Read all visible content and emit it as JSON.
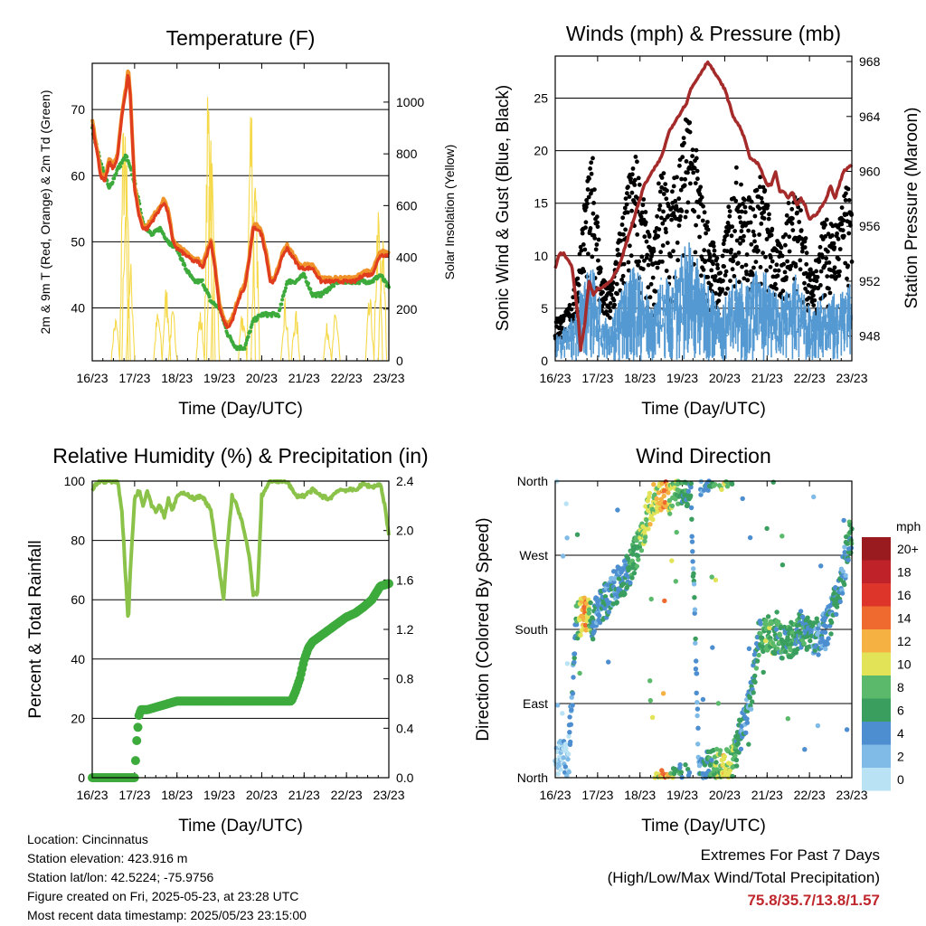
{
  "chart_data": [
    {
      "type": "line",
      "title": "Temperature (F)",
      "xlabel": "Time (Day/UTC)",
      "ylabel_left": "2m & 9m T (Red, Orange) & 2m Td (Green)",
      "ylabel_right": "Solar Insolation (Yellow)",
      "x_ticks": [
        "16/23",
        "17/23",
        "18/23",
        "19/23",
        "20/23",
        "21/23",
        "22/23",
        "23/23"
      ],
      "ylim_left": [
        32,
        77
      ],
      "yticks_left": [
        40,
        50,
        60,
        70
      ],
      "ylim_right": [
        0,
        1150
      ],
      "yticks_right": [
        0,
        200,
        400,
        600,
        800,
        1000
      ],
      "grid": "horizontal",
      "colors": {
        "t2m": "#e03c1e",
        "t9m": "#f0922a",
        "td2m": "#3daa3c",
        "solar": "#f5d94a"
      },
      "series": [
        {
          "name": "2m T",
          "axis": "left",
          "x": [
            0,
            0.1,
            0.2,
            0.3,
            0.4,
            0.5,
            0.6,
            0.7,
            0.8,
            0.85,
            0.9,
            1.0,
            1.1,
            1.2,
            1.3,
            1.4,
            1.5,
            1.6,
            1.7,
            1.8,
            1.9,
            2.0,
            2.2,
            2.4,
            2.5,
            2.6,
            2.7,
            2.8,
            2.9,
            3.0,
            3.1,
            3.2,
            3.3,
            3.4,
            3.5,
            3.6,
            3.7,
            3.8,
            3.9,
            4.0,
            4.1,
            4.2,
            4.3,
            4.4,
            4.5,
            4.6,
            4.7,
            4.8,
            4.9,
            5.0,
            5.2,
            5.4,
            5.6,
            5.8,
            6.0,
            6.2,
            6.4,
            6.6,
            6.8,
            7.0
          ],
          "y": [
            68,
            64,
            60,
            59,
            62,
            61,
            63,
            69,
            73,
            75.8,
            72,
            58,
            54,
            52,
            52,
            53,
            54,
            55,
            56,
            54,
            50,
            49,
            48,
            47,
            47,
            46,
            48,
            50,
            46,
            40,
            38,
            37,
            38,
            40,
            42,
            43,
            47,
            52,
            52,
            51,
            48,
            44,
            44,
            46,
            48,
            49,
            48,
            47,
            46,
            46,
            46,
            44,
            44,
            44,
            44,
            44,
            45,
            45,
            48,
            48
          ]
        },
        {
          "name": "2m Td",
          "axis": "left",
          "x": [
            0,
            0.2,
            0.4,
            0.6,
            0.8,
            1.0,
            1.2,
            1.4,
            1.6,
            1.8,
            2.0,
            2.2,
            2.4,
            2.6,
            2.8,
            3.0,
            3.2,
            3.4,
            3.6,
            3.8,
            4.0,
            4.2,
            4.4,
            4.6,
            4.8,
            5.0,
            5.2,
            5.4,
            5.6,
            5.8,
            6.0,
            6.2,
            6.4,
            6.6,
            6.8,
            7.0
          ],
          "y": [
            67,
            62,
            58,
            61,
            63,
            59,
            53,
            51,
            52,
            50,
            49,
            46,
            44,
            44,
            41,
            40,
            36,
            34,
            34,
            38,
            39,
            39,
            39,
            44,
            44,
            45,
            42,
            42,
            43,
            44,
            44,
            44,
            44,
            44,
            45,
            43
          ]
        },
        {
          "name": "Solar Insolation",
          "axis": "right",
          "peaks": [
            {
              "x": 0.55,
              "y": 180
            },
            {
              "x": 0.75,
              "y": 1000
            },
            {
              "x": 0.8,
              "y": 800
            },
            {
              "x": 0.9,
              "y": 400
            },
            {
              "x": 1.55,
              "y": 200
            },
            {
              "x": 1.75,
              "y": 300
            },
            {
              "x": 1.9,
              "y": 200
            },
            {
              "x": 2.55,
              "y": 200
            },
            {
              "x": 2.75,
              "y": 1150
            },
            {
              "x": 2.8,
              "y": 900
            },
            {
              "x": 2.9,
              "y": 500
            },
            {
              "x": 3.55,
              "y": 200
            },
            {
              "x": 3.75,
              "y": 1100
            },
            {
              "x": 3.85,
              "y": 700
            },
            {
              "x": 4.55,
              "y": 250
            },
            {
              "x": 4.8,
              "y": 200
            },
            {
              "x": 5.55,
              "y": 150
            },
            {
              "x": 5.75,
              "y": 200
            },
            {
              "x": 6.55,
              "y": 250
            },
            {
              "x": 6.75,
              "y": 600
            },
            {
              "x": 6.85,
              "y": 500
            }
          ]
        }
      ]
    },
    {
      "type": "scatter",
      "title": "Winds (mph) & Pressure (mb)",
      "xlabel": "Time (Day/UTC)",
      "ylabel_left": "Sonic Wind & Gust (Blue, Black)",
      "ylabel_right": "Station Pressure (Maroon)",
      "x_ticks": [
        "16/23",
        "17/23",
        "18/23",
        "19/23",
        "20/23",
        "21/23",
        "22/23",
        "23/23"
      ],
      "ylim_left": [
        0,
        29
      ],
      "yticks_left": [
        0,
        5,
        10,
        15,
        20,
        25
      ],
      "ylim_right": [
        946.2,
        968.4
      ],
      "yticks_right": [
        948,
        952,
        956,
        960,
        964,
        968
      ],
      "grid": "horizontal",
      "colors": {
        "wind": "#5499d1",
        "gust": "#000000",
        "pressure": "#a52a2a"
      },
      "series": [
        {
          "name": "Station Pressure",
          "axis": "right",
          "type": "line",
          "x": [
            0,
            0.1,
            0.2,
            0.4,
            0.55,
            0.6,
            0.7,
            0.8,
            0.9,
            1.0,
            1.1,
            1.3,
            1.5,
            1.7,
            1.9,
            2.1,
            2.3,
            2.5,
            2.6,
            2.7,
            2.8,
            2.9,
            3.0,
            3.1,
            3.2,
            3.3,
            3.4,
            3.5,
            3.6,
            3.7,
            3.8,
            3.9,
            4.0,
            4.1,
            4.2,
            4.3,
            4.4,
            4.5,
            4.6,
            4.8,
            5.0,
            5.1,
            5.2,
            5.3,
            5.4,
            5.5,
            5.6,
            5.7,
            5.8,
            5.9,
            6.0,
            6.2,
            6.4,
            6.5,
            6.6,
            6.8,
            7.0
          ],
          "y": [
            953,
            954,
            954,
            953,
            949,
            947,
            949,
            952,
            951,
            951.5,
            951.5,
            952,
            953,
            955,
            957,
            959,
            960,
            961,
            962,
            963,
            963.5,
            964,
            964.5,
            965,
            966,
            966.5,
            967,
            967.5,
            968,
            967.5,
            967,
            966.5,
            966,
            965,
            964,
            963.5,
            963,
            962,
            961,
            960.5,
            959,
            959,
            960,
            958.5,
            958.5,
            958,
            958.5,
            957.5,
            958,
            957.5,
            956.5,
            957,
            958,
            959,
            958,
            960,
            960.5
          ]
        },
        {
          "name": "Sonic Wind",
          "axis": "left",
          "type": "band",
          "x": [
            0,
            0.3,
            0.5,
            0.7,
            0.9,
            1.1,
            1.3,
            1.5,
            1.7,
            1.9,
            2.1,
            2.3,
            2.5,
            2.7,
            2.9,
            3.1,
            3.3,
            3.5,
            3.7,
            3.9,
            4.1,
            4.3,
            4.5,
            4.7,
            4.9,
            5.1,
            5.3,
            5.5,
            5.7,
            5.9,
            6.1,
            6.3,
            6.5,
            6.7,
            6.9,
            7.0
          ],
          "y": [
            2,
            3,
            4,
            8,
            9,
            4,
            3,
            5,
            7,
            8,
            6,
            4,
            8,
            6,
            8,
            10,
            9,
            7,
            6,
            4,
            6,
            7,
            6,
            7,
            8,
            6,
            5,
            6,
            7,
            5,
            4,
            6,
            5,
            6,
            7,
            6
          ]
        },
        {
          "name": "Gust",
          "axis": "left",
          "type": "points",
          "x": [
            0,
            0.3,
            0.5,
            0.7,
            0.9,
            1.1,
            1.3,
            1.5,
            1.7,
            1.9,
            2.1,
            2.3,
            2.5,
            2.7,
            2.9,
            3.1,
            3.3,
            3.5,
            3.7,
            3.9,
            4.1,
            4.3,
            4.5,
            4.7,
            4.9,
            5.1,
            5.3,
            5.5,
            5.7,
            5.9,
            6.1,
            6.3,
            6.5,
            6.7,
            6.9,
            7.0
          ],
          "y": [
            4,
            5,
            8,
            16,
            20,
            8,
            7,
            12,
            17,
            20,
            15,
            10,
            20,
            15,
            20,
            24,
            21,
            15,
            12,
            9,
            15,
            19,
            15,
            17,
            18,
            13,
            11,
            15,
            18,
            12,
            8,
            14,
            13,
            14,
            17,
            14
          ]
        }
      ]
    },
    {
      "type": "line",
      "title": "Relative Humidity (%) & Precipitation (in)",
      "xlabel": "Time (Day/UTC)",
      "ylabel_left": "Percent & Total Rainfall",
      "x_ticks": [
        "16/23",
        "17/23",
        "18/23",
        "19/23",
        "20/23",
        "21/23",
        "22/23",
        "23/23"
      ],
      "ylim_left": [
        0,
        100
      ],
      "yticks_left": [
        0,
        20,
        40,
        60,
        80,
        100
      ],
      "ylim_right": [
        0,
        2.4
      ],
      "yticks_right": [
        "0.0",
        "0.4",
        "0.8",
        "1.2",
        "1.6",
        "2.0",
        "2.4"
      ],
      "grid": "horizontal",
      "colors": {
        "rh": "#8bc34a",
        "precip": "#3daa3c"
      },
      "series": [
        {
          "name": "Relative Humidity",
          "axis": "left",
          "x": [
            0,
            0.1,
            0.2,
            0.4,
            0.6,
            0.7,
            0.8,
            0.85,
            0.9,
            1.0,
            1.1,
            1.2,
            1.3,
            1.4,
            1.5,
            1.6,
            1.7,
            1.8,
            1.9,
            2.0,
            2.2,
            2.4,
            2.6,
            2.8,
            2.9,
            3.0,
            3.1,
            3.2,
            3.3,
            3.4,
            3.5,
            3.6,
            3.7,
            3.8,
            3.9,
            4.0,
            4.2,
            4.4,
            4.6,
            4.8,
            5.0,
            5.2,
            5.4,
            5.6,
            5.8,
            6.0,
            6.2,
            6.4,
            6.6,
            6.8,
            6.9,
            7.0
          ],
          "y": [
            97,
            99,
            100,
            100,
            100,
            90,
            65,
            52,
            70,
            94,
            97,
            92,
            97,
            92,
            90,
            92,
            88,
            94,
            90,
            95,
            96,
            94,
            95,
            90,
            80,
            70,
            60,
            80,
            95,
            92,
            88,
            82,
            75,
            62,
            62,
            95,
            100,
            100,
            100,
            95,
            95,
            97,
            95,
            94,
            97,
            97,
            97,
            99,
            98,
            99,
            92,
            82
          ]
        },
        {
          "name": "Total Precipitation",
          "axis": "right",
          "x": [
            0,
            0.5,
            1.0,
            1.05,
            1.1,
            1.15,
            1.3,
            1.6,
            2.0,
            2.5,
            3.0,
            3.5,
            4.0,
            4.5,
            4.7,
            4.8,
            4.9,
            5.0,
            5.1,
            5.2,
            5.4,
            5.6,
            5.8,
            6.0,
            6.2,
            6.4,
            6.6,
            6.8,
            7.0
          ],
          "y": [
            0,
            0,
            0,
            0.3,
            0.5,
            0.55,
            0.55,
            0.58,
            0.62,
            0.62,
            0.62,
            0.62,
            0.62,
            0.62,
            0.62,
            0.7,
            0.8,
            0.95,
            1.05,
            1.1,
            1.15,
            1.2,
            1.25,
            1.3,
            1.33,
            1.38,
            1.44,
            1.55,
            1.57
          ]
        }
      ]
    },
    {
      "type": "scatter",
      "title": "Wind Direction",
      "xlabel": "Time (Day/UTC)",
      "ylabel_left": "Direction (Colored By Speed)",
      "x_ticks": [
        "16/23",
        "17/23",
        "18/23",
        "19/23",
        "20/23",
        "21/23",
        "22/23",
        "23/23"
      ],
      "y_ticks": [
        "North",
        "East",
        "South",
        "West",
        "North"
      ],
      "ylim": [
        0,
        360
      ],
      "grid": "horizontal",
      "colorbar": {
        "unit": "mph",
        "labels": [
          "0",
          "2",
          "4",
          "6",
          "8",
          "10",
          "12",
          "14",
          "16",
          "18",
          "20+"
        ],
        "colors": [
          "#b9e3f5",
          "#7fbbe6",
          "#4c8ecf",
          "#3a9e5e",
          "#5ab96b",
          "#e2e356",
          "#f5b142",
          "#ee6a2e",
          "#dd3529",
          "#c0222a",
          "#991b1f"
        ]
      },
      "series": [
        {
          "name": "Direction",
          "x": [
            0.1,
            0.2,
            0.3,
            0.5,
            0.6,
            0.7,
            0.8,
            0.9,
            1.0,
            1.2,
            1.4,
            1.6,
            1.8,
            2.0,
            2.2,
            2.4,
            2.6,
            2.7,
            2.8,
            3.0,
            3.2,
            3.4,
            3.6,
            3.8,
            4.0,
            4.2,
            4.4,
            4.6,
            4.8,
            5.0,
            5.2,
            5.4,
            5.6,
            5.8,
            6.0,
            6.2,
            6.4,
            6.6,
            6.8,
            6.9,
            7.0
          ],
          "y": [
            20,
            30,
            15,
            190,
            195,
            200,
            195,
            190,
            200,
            215,
            230,
            240,
            260,
            285,
            320,
            345,
            350,
            340,
            350,
            355,
            350,
            5,
            10,
            15,
            10,
            20,
            60,
            90,
            170,
            175,
            170,
            165,
            170,
            180,
            175,
            170,
            180,
            210,
            250,
            280,
            300
          ],
          "speed": [
            1,
            2,
            1,
            6,
            10,
            14,
            8,
            5,
            4,
            5,
            4,
            4,
            6,
            8,
            9,
            10,
            14,
            10,
            8,
            6,
            5,
            3,
            5,
            8,
            10,
            8,
            4,
            4,
            6,
            8,
            7,
            6,
            7,
            6,
            5,
            4,
            4,
            5,
            4,
            5,
            6
          ]
        }
      ]
    }
  ],
  "info": {
    "location": "Location: Cincinnatus",
    "elevation": "Station elevation: 423.916 m",
    "latlon": "Station lat/lon: 42.5224; -75.9756",
    "created": "Figure created on Fri, 2025-05-23, at 23:28 UTC",
    "recent": "Most recent data timestamp: 2025/05/23 23:15:00"
  },
  "extremes": {
    "title": "Extremes For Past 7 Days",
    "subtitle": "(High/Low/Max Wind/Total Precipitation)",
    "values": "75.8/35.7/13.8/1.57"
  }
}
